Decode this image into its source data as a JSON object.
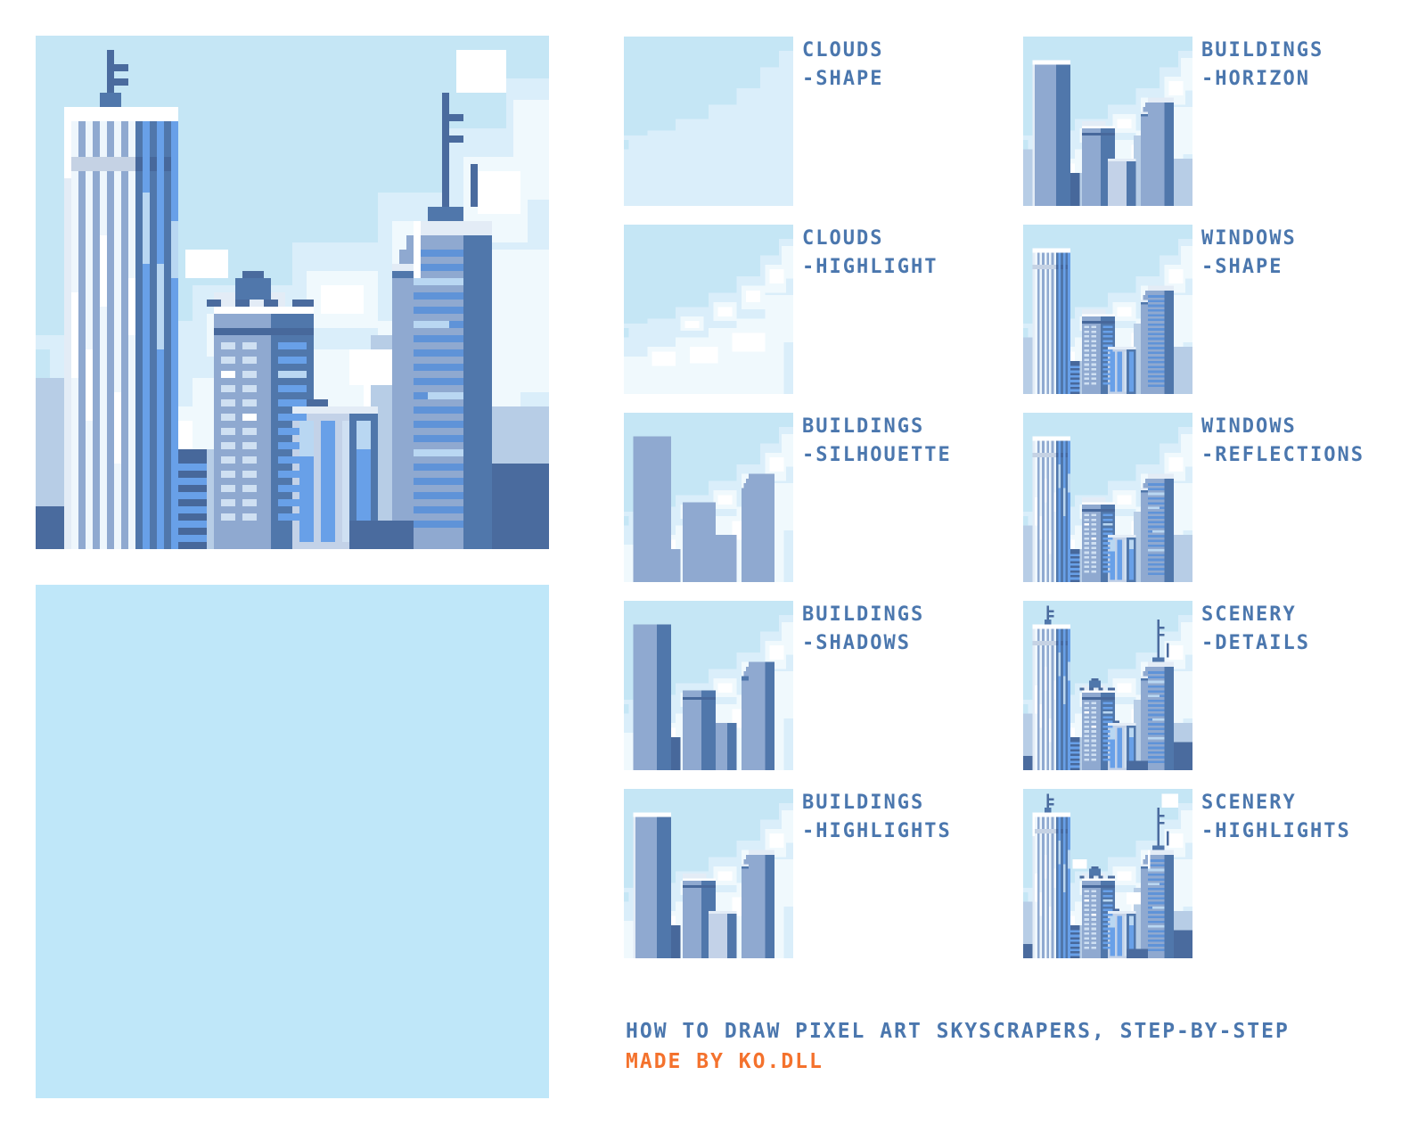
{
  "title": {
    "line1": "HOW TO DRAW PIXEL ART SKYSCRAPERS, STEP-BY-STEP",
    "line2": "MADE BY KO.DLL",
    "line1_color": "#4b77ae",
    "line2_color": "#f4722d"
  },
  "label_color": "#4b77ae",
  "swatch_panel": {
    "color": "#bfe7f9"
  },
  "steps": [
    {
      "label_line1": "CLOUDS",
      "label_line2": "-SHAPE",
      "layers": [
        "sky",
        "clouds-shape"
      ]
    },
    {
      "label_line1": "CLOUDS",
      "label_line2": "-HIGHLIGHT",
      "layers": [
        "sky",
        "clouds-shape",
        "clouds-highlight"
      ]
    },
    {
      "label_line1": "BUILDINGS",
      "label_line2": "-SILHOUETTE",
      "layers": [
        "sky",
        "clouds-shape",
        "clouds-highlight",
        "buildings-silhouette"
      ]
    },
    {
      "label_line1": "BUILDINGS",
      "label_line2": "-SHADOWS",
      "layers": [
        "sky",
        "clouds-shape",
        "clouds-highlight",
        "buildings-silhouette",
        "buildings-shadows"
      ]
    },
    {
      "label_line1": "BUILDINGS",
      "label_line2": "-HIGHLIGHTS",
      "layers": [
        "sky",
        "clouds-shape",
        "clouds-highlight",
        "buildings-silhouette",
        "buildings-shadows",
        "buildings-highlights"
      ]
    },
    {
      "label_line1": "BUILDINGS",
      "label_line2": "-HORIZON",
      "layers": [
        "sky",
        "clouds-shape",
        "clouds-highlight",
        "buildings-horizon",
        "buildings-silhouette",
        "buildings-shadows",
        "buildings-highlights"
      ]
    },
    {
      "label_line1": "WINDOWS",
      "label_line2": "-SHAPE",
      "layers": [
        "sky",
        "clouds-shape",
        "clouds-highlight",
        "buildings-horizon",
        "buildings-silhouette",
        "buildings-shadows",
        "buildings-highlights",
        "windows-shape"
      ]
    },
    {
      "label_line1": "WINDOWS",
      "label_line2": "-REFLECTIONS",
      "layers": [
        "sky",
        "clouds-shape",
        "clouds-highlight",
        "buildings-horizon",
        "buildings-silhouette",
        "buildings-shadows",
        "buildings-highlights",
        "windows-shape",
        "windows-reflections"
      ]
    },
    {
      "label_line1": "SCENERY",
      "label_line2": "-DETAILS",
      "layers": [
        "sky",
        "clouds-shape",
        "clouds-highlight",
        "buildings-horizon",
        "buildings-silhouette",
        "buildings-shadows",
        "buildings-highlights",
        "windows-shape",
        "windows-reflections",
        "scenery-details"
      ]
    },
    {
      "label_line1": "SCENERY",
      "label_line2": "-HIGHLIGHTS",
      "layers": [
        "sky",
        "clouds-shape",
        "clouds-highlight",
        "buildings-horizon",
        "buildings-silhouette",
        "buildings-shadows",
        "buildings-highlights",
        "windows-shape",
        "windows-reflections",
        "scenery-details",
        "scenery-highlights"
      ]
    }
  ],
  "scene": {
    "palette": {
      "sky": "#c5e6f5",
      "cloud": "#daeefa",
      "cloudHi": "#f0f9fd",
      "white": "#ffffff",
      "horizon": "#b7cde6",
      "base": "#8fa9d0",
      "shadow": "#5077ab",
      "shadowDark": "#47689b",
      "hiEdge": "#e3ecf6",
      "lightFace": "#c3d2e8",
      "bandLight": "#c5d2e4",
      "winWhite": "#eef6fc",
      "winPale": "#cfe0f2",
      "winBlue": "#68a0e8",
      "winDeep": "#5f93d8",
      "winRefl": "#b9d7f2",
      "dark": "#4a6b9e"
    },
    "layers": [
      {
        "name": "sky",
        "rects": [
          [
            0,
            0,
            72,
            72,
            "sky"
          ]
        ]
      },
      {
        "name": "clouds-shape",
        "rects": [
          [
            0,
            42,
            24,
            2,
            "cloud"
          ],
          [
            0,
            48,
            72,
            24,
            "cloud"
          ],
          [
            2,
            44,
            12,
            6,
            "cloud"
          ],
          [
            10,
            40,
            14,
            9,
            "cloud"
          ],
          [
            22,
            35,
            16,
            14,
            "cloud"
          ],
          [
            36,
            29,
            16,
            20,
            "cloud"
          ],
          [
            48,
            22,
            16,
            27,
            "cloud"
          ],
          [
            58,
            13,
            14,
            36,
            "cloud"
          ],
          [
            66,
            6,
            6,
            43,
            "cloud"
          ]
        ]
      },
      {
        "name": "clouds-highlight",
        "rects": [
          [
            0,
            56,
            18,
            16,
            "cloudHi"
          ],
          [
            10,
            52,
            14,
            20,
            "cloudHi"
          ],
          [
            22,
            48,
            16,
            24,
            "cloudHi"
          ],
          [
            36,
            44,
            16,
            28,
            "cloudHi"
          ],
          [
            48,
            40,
            20,
            32,
            "cloudHi"
          ],
          [
            60,
            30,
            12,
            20,
            "cloudHi"
          ],
          [
            24,
            39,
            10,
            6,
            "cloudHi"
          ],
          [
            38,
            33,
            10,
            8,
            "cloudHi"
          ],
          [
            50,
            26,
            10,
            10,
            "cloudHi"
          ],
          [
            60,
            17,
            9,
            12,
            "cloudHi"
          ],
          [
            67,
            9,
            5,
            14,
            "cloudHi"
          ],
          [
            26,
            41,
            6,
            3,
            "white"
          ],
          [
            40,
            35,
            6,
            4,
            "white"
          ],
          [
            52,
            28,
            6,
            5,
            "white"
          ],
          [
            62,
            19,
            6,
            6,
            "white"
          ],
          [
            12,
            54,
            10,
            6,
            "white"
          ],
          [
            28,
            52,
            12,
            7,
            "white"
          ],
          [
            46,
            46,
            14,
            8,
            "white"
          ]
        ]
      },
      {
        "name": "buildings-horizon",
        "rects": [
          [
            0,
            48,
            4,
            24,
            "horizon"
          ],
          [
            20,
            58,
            6,
            14,
            "horizon"
          ],
          [
            44,
            60,
            9,
            12,
            "horizon"
          ],
          [
            64,
            52,
            8,
            20,
            "horizon"
          ],
          [
            47,
            42,
            3,
            30,
            "horizon"
          ]
        ]
      },
      {
        "name": "buildings-silhouette",
        "rects": [
          [
            4,
            10,
            16,
            62,
            "base"
          ],
          [
            20,
            58,
            4,
            14,
            "base"
          ],
          [
            25,
            38,
            14,
            34,
            "base"
          ],
          [
            36,
            52,
            12,
            20,
            "base"
          ],
          [
            53,
            26,
            11,
            46,
            "base"
          ],
          [
            52,
            28,
            1,
            44,
            "base"
          ],
          [
            51,
            30,
            1,
            42,
            "base"
          ],
          [
            50,
            32,
            1,
            40,
            "base"
          ]
        ]
      },
      {
        "name": "buildings-shadows",
        "rects": [
          [
            14,
            10,
            6,
            62,
            "shadow"
          ],
          [
            20,
            58,
            4,
            14,
            "shadowDark"
          ],
          [
            33,
            38,
            6,
            34,
            "shadow"
          ],
          [
            44,
            52,
            4,
            20,
            "shadow"
          ],
          [
            60,
            26,
            4,
            46,
            "shadow"
          ],
          [
            25,
            41,
            14,
            1,
            "shadowDark"
          ],
          [
            50,
            32,
            3,
            2,
            "shadow"
          ]
        ]
      },
      {
        "name": "buildings-highlights",
        "rects": [
          [
            4,
            10,
            16,
            2,
            "white"
          ],
          [
            4,
            12,
            1,
            60,
            "hiEdge"
          ],
          [
            25,
            38,
            14,
            1,
            "white"
          ],
          [
            25,
            36,
            10,
            2,
            "hiEdge"
          ],
          [
            36,
            52,
            12,
            1,
            "hiEdge"
          ],
          [
            53,
            26,
            11,
            2,
            "hiEdge"
          ],
          [
            50,
            32,
            3,
            1,
            "hiEdge"
          ],
          [
            36,
            53,
            8,
            19,
            "lightFace"
          ]
        ]
      },
      {
        "name": "windows-shape",
        "rects": [
          [
            5,
            12,
            1,
            60,
            "winWhite",
            5,
            2,
            0
          ],
          [
            4,
            17,
            10,
            2,
            "bandLight"
          ],
          [
            14,
            17,
            6,
            2,
            "shadowDark"
          ],
          [
            15,
            12,
            1,
            60,
            "winBlue",
            3,
            2,
            0
          ],
          [
            53,
            30,
            7,
            1,
            "winDeep",
            20,
            0,
            2
          ],
          [
            26,
            43,
            2,
            1,
            "winPale",
            13,
            0,
            2
          ],
          [
            29,
            43,
            2,
            1,
            "winPale",
            13,
            0,
            2
          ],
          [
            34,
            43,
            4,
            1,
            "winBlue",
            13,
            0,
            2
          ],
          [
            37,
            54,
            2,
            17,
            "winBlue"
          ],
          [
            40,
            54,
            2,
            17,
            "winBlue"
          ],
          [
            43,
            54,
            1,
            17,
            "winPale"
          ],
          [
            45,
            54,
            2,
            17,
            "winBlue"
          ],
          [
            20,
            60,
            4,
            1,
            "winBlue",
            6,
            0,
            2
          ]
        ]
      },
      {
        "name": "windows-reflections",
        "rects": [
          [
            5,
            36,
            1,
            12,
            "white"
          ],
          [
            7,
            44,
            1,
            10,
            "white"
          ],
          [
            9,
            28,
            1,
            10,
            "white"
          ],
          [
            11,
            50,
            1,
            10,
            "white"
          ],
          [
            13,
            34,
            1,
            8,
            "white"
          ],
          [
            15,
            22,
            1,
            10,
            "winRefl"
          ],
          [
            17,
            32,
            1,
            12,
            "winRefl"
          ],
          [
            19,
            26,
            1,
            8,
            "winRefl"
          ],
          [
            53,
            34,
            7,
            1,
            "winRefl"
          ],
          [
            53,
            40,
            5,
            1,
            "winRefl"
          ],
          [
            55,
            50,
            5,
            1,
            "winRefl"
          ],
          [
            53,
            58,
            7,
            1,
            "winRefl"
          ],
          [
            26,
            47,
            2,
            1,
            "white"
          ],
          [
            29,
            53,
            2,
            1,
            "white"
          ],
          [
            34,
            47,
            4,
            1,
            "winRefl"
          ],
          [
            37,
            54,
            2,
            5,
            "winRefl"
          ],
          [
            45,
            54,
            2,
            4,
            "winRefl"
          ]
        ]
      },
      {
        "name": "scenery-details",
        "rects": [
          [
            10,
            2,
            1,
            8,
            "dark"
          ],
          [
            11,
            4,
            2,
            1,
            "dark"
          ],
          [
            11,
            6,
            2,
            1,
            "dark"
          ],
          [
            9,
            8,
            3,
            2,
            "shadow"
          ],
          [
            57,
            8,
            1,
            16,
            "dark"
          ],
          [
            58,
            11,
            2,
            1,
            "dark"
          ],
          [
            58,
            14,
            2,
            1,
            "dark"
          ],
          [
            61,
            18,
            1,
            6,
            "dark"
          ],
          [
            55,
            24,
            5,
            2,
            "shadow"
          ],
          [
            28,
            34,
            5,
            3,
            "shadow"
          ],
          [
            29,
            33,
            3,
            1,
            "dark"
          ],
          [
            24,
            37,
            2,
            1,
            "dark"
          ],
          [
            28,
            37,
            2,
            1,
            "dark"
          ],
          [
            32,
            37,
            2,
            1,
            "dark"
          ],
          [
            36,
            37,
            3,
            1,
            "dark"
          ],
          [
            38,
            51,
            3,
            1,
            "dark"
          ],
          [
            64,
            60,
            8,
            12,
            "dark"
          ],
          [
            44,
            68,
            9,
            4,
            "dark"
          ],
          [
            0,
            66,
            4,
            6,
            "dark"
          ]
        ]
      },
      {
        "name": "scenery-highlights",
        "rects": [
          [
            59,
            2,
            7,
            6,
            "white"
          ],
          [
            4,
            10,
            1,
            10,
            "white"
          ],
          [
            53,
            26,
            1,
            8,
            "white"
          ],
          [
            21,
            30,
            6,
            4,
            "white"
          ],
          [
            44,
            44,
            6,
            5,
            "white"
          ]
        ]
      }
    ]
  }
}
